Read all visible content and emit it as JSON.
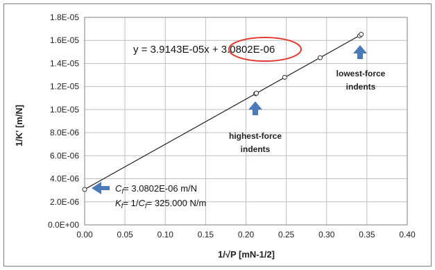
{
  "chart_data": {
    "type": "scatter",
    "title": "",
    "xlabel": "1/√P  [mN-1/2]",
    "ylabel": "1/K' [m/N]",
    "xlim": [
      0,
      0.4
    ],
    "ylim": [
      0,
      1.8e-05
    ],
    "x_ticks": [
      0,
      0.05,
      0.1,
      0.15,
      0.2,
      0.25,
      0.3,
      0.35,
      0.4
    ],
    "x_tick_labels": [
      "0.00",
      "0.05",
      "0.10",
      "0.15",
      "0.20",
      "0.25",
      "0.30",
      "0.35",
      "0.40"
    ],
    "y_ticks": [
      0,
      2e-06,
      4e-06,
      6e-06,
      8e-06,
      1e-05,
      1.2e-05,
      1.4e-05,
      1.6e-05,
      1.8e-05
    ],
    "y_tick_labels": [
      "0.0E+00",
      "2.0E-06",
      "4.0E-06",
      "6.0E-06",
      "8.0E-06",
      "1.0E-05",
      "1.2E-05",
      "1.4E-05",
      "1.6E-05",
      "1.8E-05"
    ],
    "grid": true,
    "series": [
      {
        "values": [
          [
            0.0,
            3.08e-06
          ],
          [
            0.212,
            1.138e-05
          ],
          [
            0.213,
            1.142e-05
          ],
          [
            0.248,
            1.28e-05
          ],
          [
            0.292,
            1.45e-05
          ],
          [
            0.341,
            1.64e-05
          ],
          [
            0.343,
            1.653e-05
          ]
        ]
      }
    ],
    "trendline": {
      "slope": 3.9143e-05,
      "intercept": 3.0802e-06,
      "x_range": [
        0,
        0.343
      ]
    },
    "annotations": {
      "equation_prefix": "y = 3.9143E-05x + ",
      "equation_intercept": "3.0802E-06",
      "highest_force_line1": "highest-force",
      "highest_force_line2": "indents",
      "lowest_force_line1": "lowest-force",
      "lowest_force_line2": "indents",
      "cf_line": "= 3.0802E-06 m/N",
      "cf_symbol": "C",
      "cf_sub": "f",
      "kf_line": "= 1/",
      "kf_symbol": "K",
      "kf_sub": "f",
      "kf_value": "= 325.000 N/m"
    },
    "colors": {
      "highlight_ellipse": "#e03c31",
      "arrow": "#4a7ab8",
      "line": "#222222",
      "grid": "#bfbfbf"
    }
  }
}
